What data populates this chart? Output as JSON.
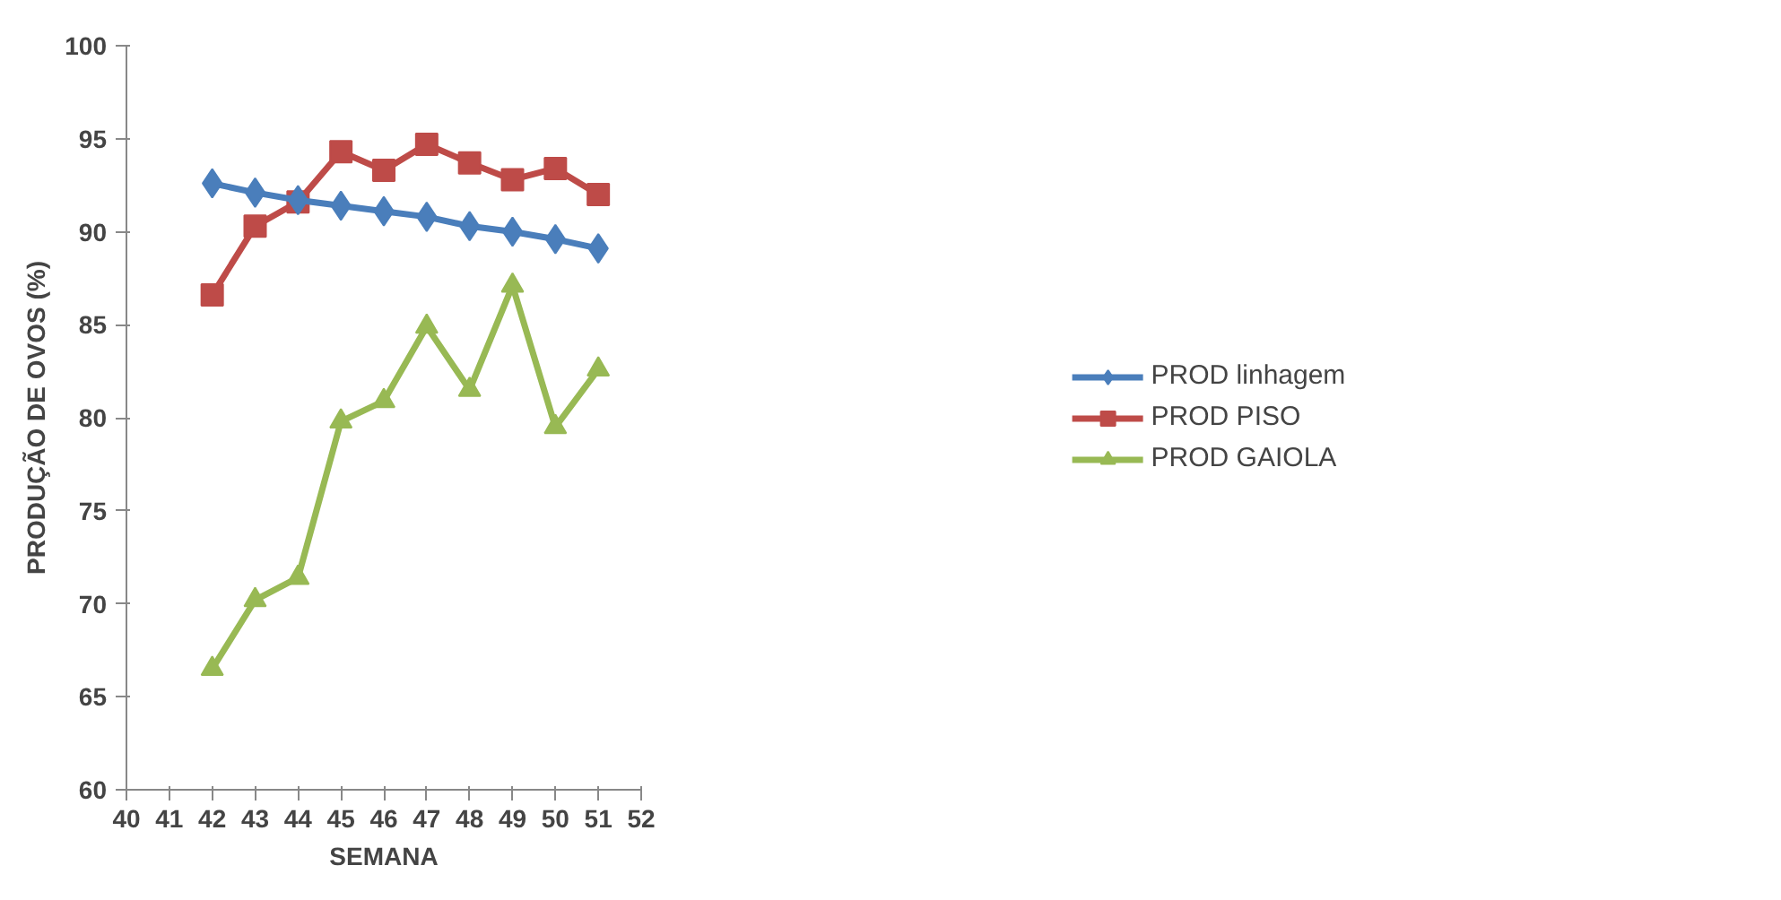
{
  "chart_data": {
    "type": "line",
    "xlabel": "SEMANA",
    "ylabel": "PRODUÇÃO DE OVOS (%)",
    "x": [
      42,
      43,
      44,
      45,
      46,
      47,
      48,
      49,
      50,
      51
    ],
    "series": [
      {
        "name": "PROD linhagem",
        "color": "#4a7ebb",
        "marker": "diamond",
        "values": [
          92.6,
          92.1,
          91.7,
          91.4,
          91.1,
          90.8,
          90.3,
          90.0,
          89.6,
          89.1
        ]
      },
      {
        "name": "PROD PISO",
        "color": "#be4b48",
        "marker": "square",
        "values": [
          86.6,
          90.3,
          91.6,
          94.3,
          93.3,
          94.7,
          93.7,
          92.8,
          93.4,
          92.0
        ]
      },
      {
        "name": "PROD GAIOLA",
        "color": "#98b954",
        "marker": "triangle",
        "values": [
          66.5,
          70.2,
          71.4,
          79.8,
          80.9,
          84.9,
          81.5,
          87.1,
          79.5,
          82.6
        ]
      }
    ],
    "xlim": [
      40,
      52
    ],
    "xticks": [
      40,
      41,
      42,
      43,
      44,
      45,
      46,
      47,
      48,
      49,
      50,
      51,
      52
    ],
    "ylim": [
      60,
      100
    ],
    "yticks": [
      60,
      65,
      70,
      75,
      80,
      85,
      90,
      95,
      100
    ],
    "grid": false,
    "legend": "right",
    "line_style": "solid"
  }
}
